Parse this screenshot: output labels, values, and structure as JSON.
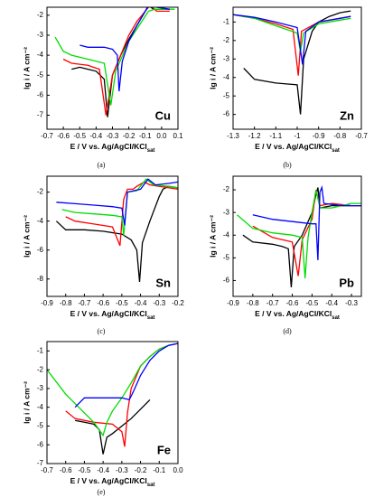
{
  "chart_data": [
    {
      "type": "line",
      "caption": "(a)",
      "annotation": "Cu",
      "y_label": "lg i / A cm⁻²",
      "x_label": "E / V vs. Ag/AgCl/KCl",
      "x_label_sub": "sat",
      "xlim": [
        -0.7,
        0.1
      ],
      "xticks": [
        -0.7,
        -0.6,
        -0.5,
        -0.4,
        -0.3,
        -0.2,
        -0.1,
        {
          "value": 0,
          "label": "0.0"
        },
        0.1
      ],
      "ylim": [
        -7.7,
        -1.6
      ],
      "yticks": [
        -7,
        -6,
        -5,
        -4,
        -3,
        -2
      ],
      "series": [
        {
          "color": "#000000",
          "x": [
            -0.55,
            -0.5,
            -0.45,
            -0.4,
            -0.35,
            -0.33,
            -0.3,
            -0.25,
            -0.2,
            -0.15,
            -0.1,
            -0.08,
            -0.05,
            0,
            0.05
          ],
          "values": [
            -4.7,
            -4.6,
            -4.7,
            -4.8,
            -5.2,
            -7.1,
            -5.0,
            -4.0,
            -3.2,
            -2.5,
            -1.8,
            -1.5,
            -1.7,
            -1.7,
            -1.7
          ]
        },
        {
          "color": "#ff0000",
          "x": [
            -0.6,
            -0.55,
            -0.45,
            -0.38,
            -0.34,
            -0.3,
            -0.25,
            -0.2,
            -0.15,
            -0.1,
            -0.07,
            -0.03,
            0.05
          ],
          "values": [
            -4.2,
            -4.4,
            -4.5,
            -4.7,
            -7.0,
            -5.0,
            -4.0,
            -3.0,
            -2.3,
            -1.8,
            -1.5,
            -1.8,
            -1.8
          ]
        },
        {
          "color": "#00dd00",
          "x": [
            -0.65,
            -0.6,
            -0.55,
            -0.45,
            -0.35,
            -0.31,
            -0.28,
            -0.2,
            -0.12,
            -0.08,
            -0.04,
            0.05,
            0.08
          ],
          "values": [
            -3.1,
            -3.8,
            -4.0,
            -4.2,
            -4.4,
            -6.5,
            -4.8,
            -3.3,
            -2.3,
            -1.8,
            -1.7,
            -1.7,
            -1.7
          ]
        },
        {
          "color": "#0000ff",
          "x": [
            -0.5,
            -0.45,
            -0.35,
            -0.3,
            -0.27,
            -0.26,
            -0.24,
            -0.2,
            -0.15,
            -0.1,
            -0.07,
            -0.03,
            0.05
          ],
          "values": [
            -3.5,
            -3.6,
            -3.6,
            -3.7,
            -4.0,
            -5.8,
            -4.3,
            -3.3,
            -2.5,
            -1.8,
            -1.4,
            -1.6,
            -1.7
          ]
        }
      ]
    },
    {
      "type": "line",
      "caption": "(b)",
      "annotation": "Zn",
      "y_label": "lg i / A cm⁻²",
      "x_label": "E / V vs. Ag/AgCl/KCl",
      "x_label_sub": "sat",
      "xlim": [
        -1.3,
        -0.7
      ],
      "xticks": [
        -1.3,
        -1.2,
        -1.1,
        -1.0,
        -0.9,
        -0.8,
        -0.7
      ],
      "ylim": [
        -6.8,
        -0.2
      ],
      "yticks": [
        -6,
        -5,
        -4,
        -3,
        -2,
        -1
      ],
      "series": [
        {
          "color": "#000000",
          "x": [
            -1.25,
            -1.2,
            -1.1,
            -1.0,
            -0.985,
            -0.97,
            -0.93,
            -0.9,
            -0.85,
            -0.8,
            -0.75
          ],
          "values": [
            -3.5,
            -4.1,
            -4.3,
            -4.4,
            -6.0,
            -3.0,
            -1.5,
            -1.0,
            -0.7,
            -0.5,
            -0.4
          ]
        },
        {
          "color": "#ff0000",
          "x": [
            -1.3,
            -1.2,
            -1.1,
            -1.02,
            -0.995,
            -0.98,
            -0.9,
            -0.8,
            -0.75
          ],
          "values": [
            -0.6,
            -0.8,
            -1.1,
            -1.4,
            -3.9,
            -1.5,
            -1.0,
            -0.8,
            -0.7
          ]
        },
        {
          "color": "#00dd00",
          "x": [
            -1.3,
            -1.2,
            -1.1,
            -1.0,
            -0.985,
            -0.97,
            -0.9,
            -0.8,
            -0.75
          ],
          "values": [
            -0.6,
            -0.8,
            -1.2,
            -1.6,
            -2.6,
            -1.6,
            -1.1,
            -0.9,
            -0.8
          ]
        },
        {
          "color": "#0000ff",
          "x": [
            -1.3,
            -1.2,
            -1.1,
            -1.0,
            -0.975,
            -0.96,
            -0.9,
            -0.8,
            -0.75
          ],
          "values": [
            -0.6,
            -0.75,
            -1.0,
            -1.3,
            -3.3,
            -1.5,
            -1.0,
            -0.8,
            -0.7
          ]
        }
      ]
    },
    {
      "type": "line",
      "caption": "(c)",
      "annotation": "Sn",
      "y_label": "lg i / A cm⁻²",
      "x_label": "E / V vs. Ag/AgCl/KCl",
      "x_label_sub": "sat",
      "xlim": [
        -0.9,
        -0.2
      ],
      "xticks": [
        -0.9,
        -0.8,
        -0.7,
        -0.6,
        -0.5,
        -0.4,
        -0.3,
        -0.2
      ],
      "ylim": [
        -9.2,
        -0.9
      ],
      "yticks": [
        -8,
        -6,
        -4,
        -2
      ],
      "series": [
        {
          "color": "#000000",
          "x": [
            -0.85,
            -0.8,
            -0.7,
            -0.6,
            -0.5,
            -0.45,
            -0.42,
            -0.405,
            -0.39,
            -0.35,
            -0.3,
            -0.28,
            -0.25,
            -0.2
          ],
          "values": [
            -4.0,
            -4.6,
            -4.6,
            -4.7,
            -4.9,
            -5.3,
            -6.0,
            -8.2,
            -5.5,
            -4.0,
            -2.3,
            -1.8,
            -1.6,
            -1.7
          ]
        },
        {
          "color": "#ff0000",
          "x": [
            -0.8,
            -0.75,
            -0.65,
            -0.55,
            -0.51,
            -0.49,
            -0.47,
            -0.44,
            -0.42,
            -0.38,
            -0.35,
            -0.3,
            -0.2
          ],
          "values": [
            -3.7,
            -4.0,
            -4.2,
            -4.4,
            -5.7,
            -2.5,
            -1.8,
            -1.8,
            -1.6,
            -1.3,
            -1.5,
            -1.6,
            -1.8
          ]
        },
        {
          "color": "#00dd00",
          "x": [
            -0.82,
            -0.75,
            -0.65,
            -0.55,
            -0.5,
            -0.49,
            -0.47,
            -0.42,
            -0.37,
            -0.33,
            -0.25,
            -0.2
          ],
          "values": [
            -3.2,
            -3.4,
            -3.5,
            -3.6,
            -3.7,
            -5.0,
            -2.0,
            -1.9,
            -1.1,
            -1.5,
            -1.6,
            -1.7
          ]
        },
        {
          "color": "#0000ff",
          "x": [
            -0.85,
            -0.75,
            -0.65,
            -0.55,
            -0.5,
            -0.485,
            -0.47,
            -0.4,
            -0.36,
            -0.32,
            -0.25,
            -0.2
          ],
          "values": [
            -2.7,
            -2.8,
            -2.9,
            -3.0,
            -3.1,
            -4.3,
            -2.0,
            -1.8,
            -1.1,
            -1.5,
            -1.4,
            -1.3
          ]
        }
      ]
    },
    {
      "type": "line",
      "caption": "(d)",
      "annotation": "Pb",
      "y_label": "lg i / A cm⁻²",
      "x_label": "E / V vs. Ag/AgCl/KCl",
      "x_label_sub": "sat",
      "xlim": [
        -0.9,
        -0.25
      ],
      "xticks": [
        -0.9,
        -0.8,
        -0.7,
        -0.6,
        -0.5,
        -0.4,
        -0.3
      ],
      "ylim": [
        -6.7,
        -1.4
      ],
      "yticks": [
        -6,
        -5,
        -4,
        -3,
        -2
      ],
      "series": [
        {
          "color": "#000000",
          "x": [
            -0.85,
            -0.8,
            -0.7,
            -0.65,
            -0.62,
            -0.605,
            -0.59,
            -0.55,
            -0.5,
            -0.48,
            -0.47,
            -0.46,
            -0.4,
            -0.3,
            -0.25
          ],
          "values": [
            -4.0,
            -4.3,
            -4.4,
            -4.5,
            -4.6,
            -6.3,
            -4.5,
            -4.0,
            -3.0,
            -2.2,
            -1.9,
            -2.8,
            -2.7,
            -2.7,
            -2.7
          ]
        },
        {
          "color": "#ff0000",
          "x": [
            -0.8,
            -0.7,
            -0.6,
            -0.57,
            -0.55,
            -0.5,
            -0.48,
            -0.46,
            -0.4,
            -0.3,
            -0.25
          ],
          "values": [
            -3.6,
            -4.1,
            -4.3,
            -5.8,
            -4.2,
            -3.3,
            -2.0,
            -2.7,
            -2.6,
            -2.7,
            -2.7
          ]
        },
        {
          "color": "#00dd00",
          "x": [
            -0.88,
            -0.8,
            -0.7,
            -0.6,
            -0.55,
            -0.535,
            -0.52,
            -0.5,
            -0.48,
            -0.46,
            -0.4,
            -0.3,
            -0.25
          ],
          "values": [
            -3.1,
            -3.7,
            -3.9,
            -4.0,
            -4.1,
            -5.9,
            -4.1,
            -3.0,
            -2.0,
            -2.8,
            -2.8,
            -2.6,
            -2.6
          ]
        },
        {
          "color": "#0000ff",
          "x": [
            -0.8,
            -0.7,
            -0.6,
            -0.5,
            -0.48,
            -0.47,
            -0.46,
            -0.45,
            -0.44,
            -0.35,
            -0.25
          ],
          "values": [
            -3.1,
            -3.3,
            -3.4,
            -3.5,
            -3.5,
            -5.1,
            -2.1,
            -1.9,
            -2.6,
            -2.7,
            -2.7
          ]
        }
      ]
    },
    {
      "type": "line",
      "caption": "(e)",
      "annotation": "Fe",
      "y_label": "lg i / A cm⁻²",
      "x_label": "E / V vs. Ag/AgCl/KCl",
      "x_label_sub": "sat",
      "xlim": [
        -0.7,
        0
      ],
      "xticks": [
        -0.7,
        -0.6,
        -0.5,
        -0.4,
        -0.3,
        -0.2,
        -0.1,
        {
          "value": 0,
          "label": "0.0"
        }
      ],
      "ylim": [
        -7,
        -0.5
      ],
      "yticks": [
        -7,
        -6,
        -5,
        -4,
        -3,
        -2,
        -1
      ],
      "series": [
        {
          "color": "#000000",
          "x": [
            -0.55,
            -0.5,
            -0.45,
            -0.42,
            -0.4,
            -0.38,
            -0.35,
            -0.3,
            -0.25,
            -0.2,
            -0.15
          ],
          "values": [
            -4.7,
            -4.8,
            -4.9,
            -5.2,
            -6.5,
            -5.6,
            -5.4,
            -5.0,
            -4.6,
            -4.1,
            -3.6
          ]
        },
        {
          "color": "#ff0000",
          "x": [
            -0.6,
            -0.55,
            -0.45,
            -0.35,
            -0.3,
            -0.285,
            -0.27,
            -0.25,
            -0.2,
            -0.15,
            -0.1,
            -0.05,
            0
          ],
          "values": [
            -4.2,
            -4.6,
            -4.8,
            -4.9,
            -5.3,
            -6.1,
            -4.3,
            -3.0,
            -1.8,
            -1.3,
            -0.9,
            -0.7,
            -0.6
          ]
        },
        {
          "color": "#00dd00",
          "x": [
            -0.7,
            -0.6,
            -0.5,
            -0.45,
            -0.4,
            -0.38,
            -0.35,
            -0.3,
            -0.25,
            -0.2,
            -0.15,
            -0.1,
            -0.05,
            0
          ],
          "values": [
            -2.0,
            -3.3,
            -4.3,
            -4.8,
            -5.5,
            -4.8,
            -4.2,
            -3.5,
            -2.7,
            -1.8,
            -1.3,
            -0.9,
            -0.7,
            -0.6
          ]
        },
        {
          "color": "#0000ff",
          "x": [
            -0.55,
            -0.5,
            -0.45,
            -0.35,
            -0.3,
            -0.26,
            -0.24,
            -0.2,
            -0.15,
            -0.1,
            -0.05,
            0
          ],
          "values": [
            -4.0,
            -3.5,
            -3.5,
            -3.5,
            -3.5,
            -3.6,
            -3.2,
            -2.3,
            -1.5,
            -1.0,
            -0.7,
            -0.6
          ]
        }
      ]
    }
  ]
}
